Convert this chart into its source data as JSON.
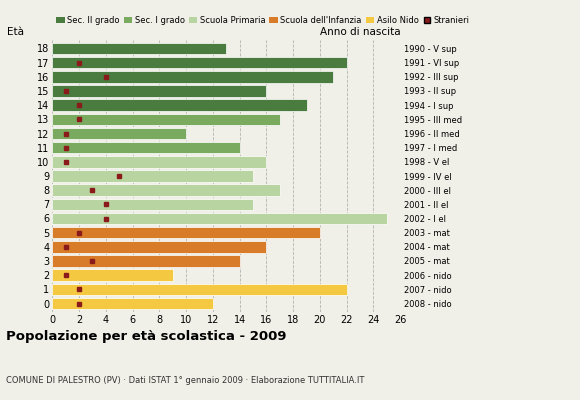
{
  "ages": [
    18,
    17,
    16,
    15,
    14,
    13,
    12,
    11,
    10,
    9,
    8,
    7,
    6,
    5,
    4,
    3,
    2,
    1,
    0
  ],
  "anno": [
    "1990 - V sup",
    "1991 - VI sup",
    "1992 - III sup",
    "1993 - II sup",
    "1994 - I sup",
    "1995 - III med",
    "1996 - II med",
    "1997 - I med",
    "1998 - V el",
    "1999 - IV el",
    "2000 - III el",
    "2001 - II el",
    "2002 - I el",
    "2003 - mat",
    "2004 - mat",
    "2005 - mat",
    "2006 - nido",
    "2007 - nido",
    "2008 - nido"
  ],
  "bar_values": [
    13,
    22,
    21,
    16,
    19,
    17,
    10,
    14,
    16,
    15,
    17,
    15,
    25,
    20,
    16,
    14,
    9,
    22,
    12
  ],
  "bar_colors": [
    "#4a7c3f",
    "#4a7c3f",
    "#4a7c3f",
    "#4a7c3f",
    "#4a7c3f",
    "#7aaa5f",
    "#7aaa5f",
    "#7aaa5f",
    "#b8d4a0",
    "#b8d4a0",
    "#b8d4a0",
    "#b8d4a0",
    "#b8d4a0",
    "#d97c2a",
    "#d97c2a",
    "#d97c2a",
    "#f5c842",
    "#f5c842",
    "#f5c842"
  ],
  "stranieri": [
    0,
    2,
    4,
    1,
    2,
    2,
    1,
    1,
    1,
    5,
    3,
    4,
    4,
    2,
    1,
    3,
    1,
    2,
    2
  ],
  "legend_labels": [
    "Sec. II grado",
    "Sec. I grado",
    "Scuola Primaria",
    "Scuola dell'Infanzia",
    "Asilo Nido",
    "Stranieri"
  ],
  "legend_colors": [
    "#4a7c3f",
    "#7aaa5f",
    "#b8d4a0",
    "#d97c2a",
    "#f5c842",
    "#8b1a1a"
  ],
  "title": "Popolazione per età scolastica - 2009",
  "subtitle": "COMUNE DI PALESTRO (PV) · Dati ISTAT 1° gennaio 2009 · Elaborazione TUTTITALIA.IT",
  "xlabel_age": "Età",
  "xlabel_anno": "Anno di nascita",
  "xlim": [
    0,
    26
  ],
  "xticks": [
    0,
    2,
    4,
    6,
    8,
    10,
    12,
    14,
    16,
    18,
    20,
    22,
    24,
    26
  ],
  "bg_color": "#f0f0e8",
  "bar_height": 0.82
}
